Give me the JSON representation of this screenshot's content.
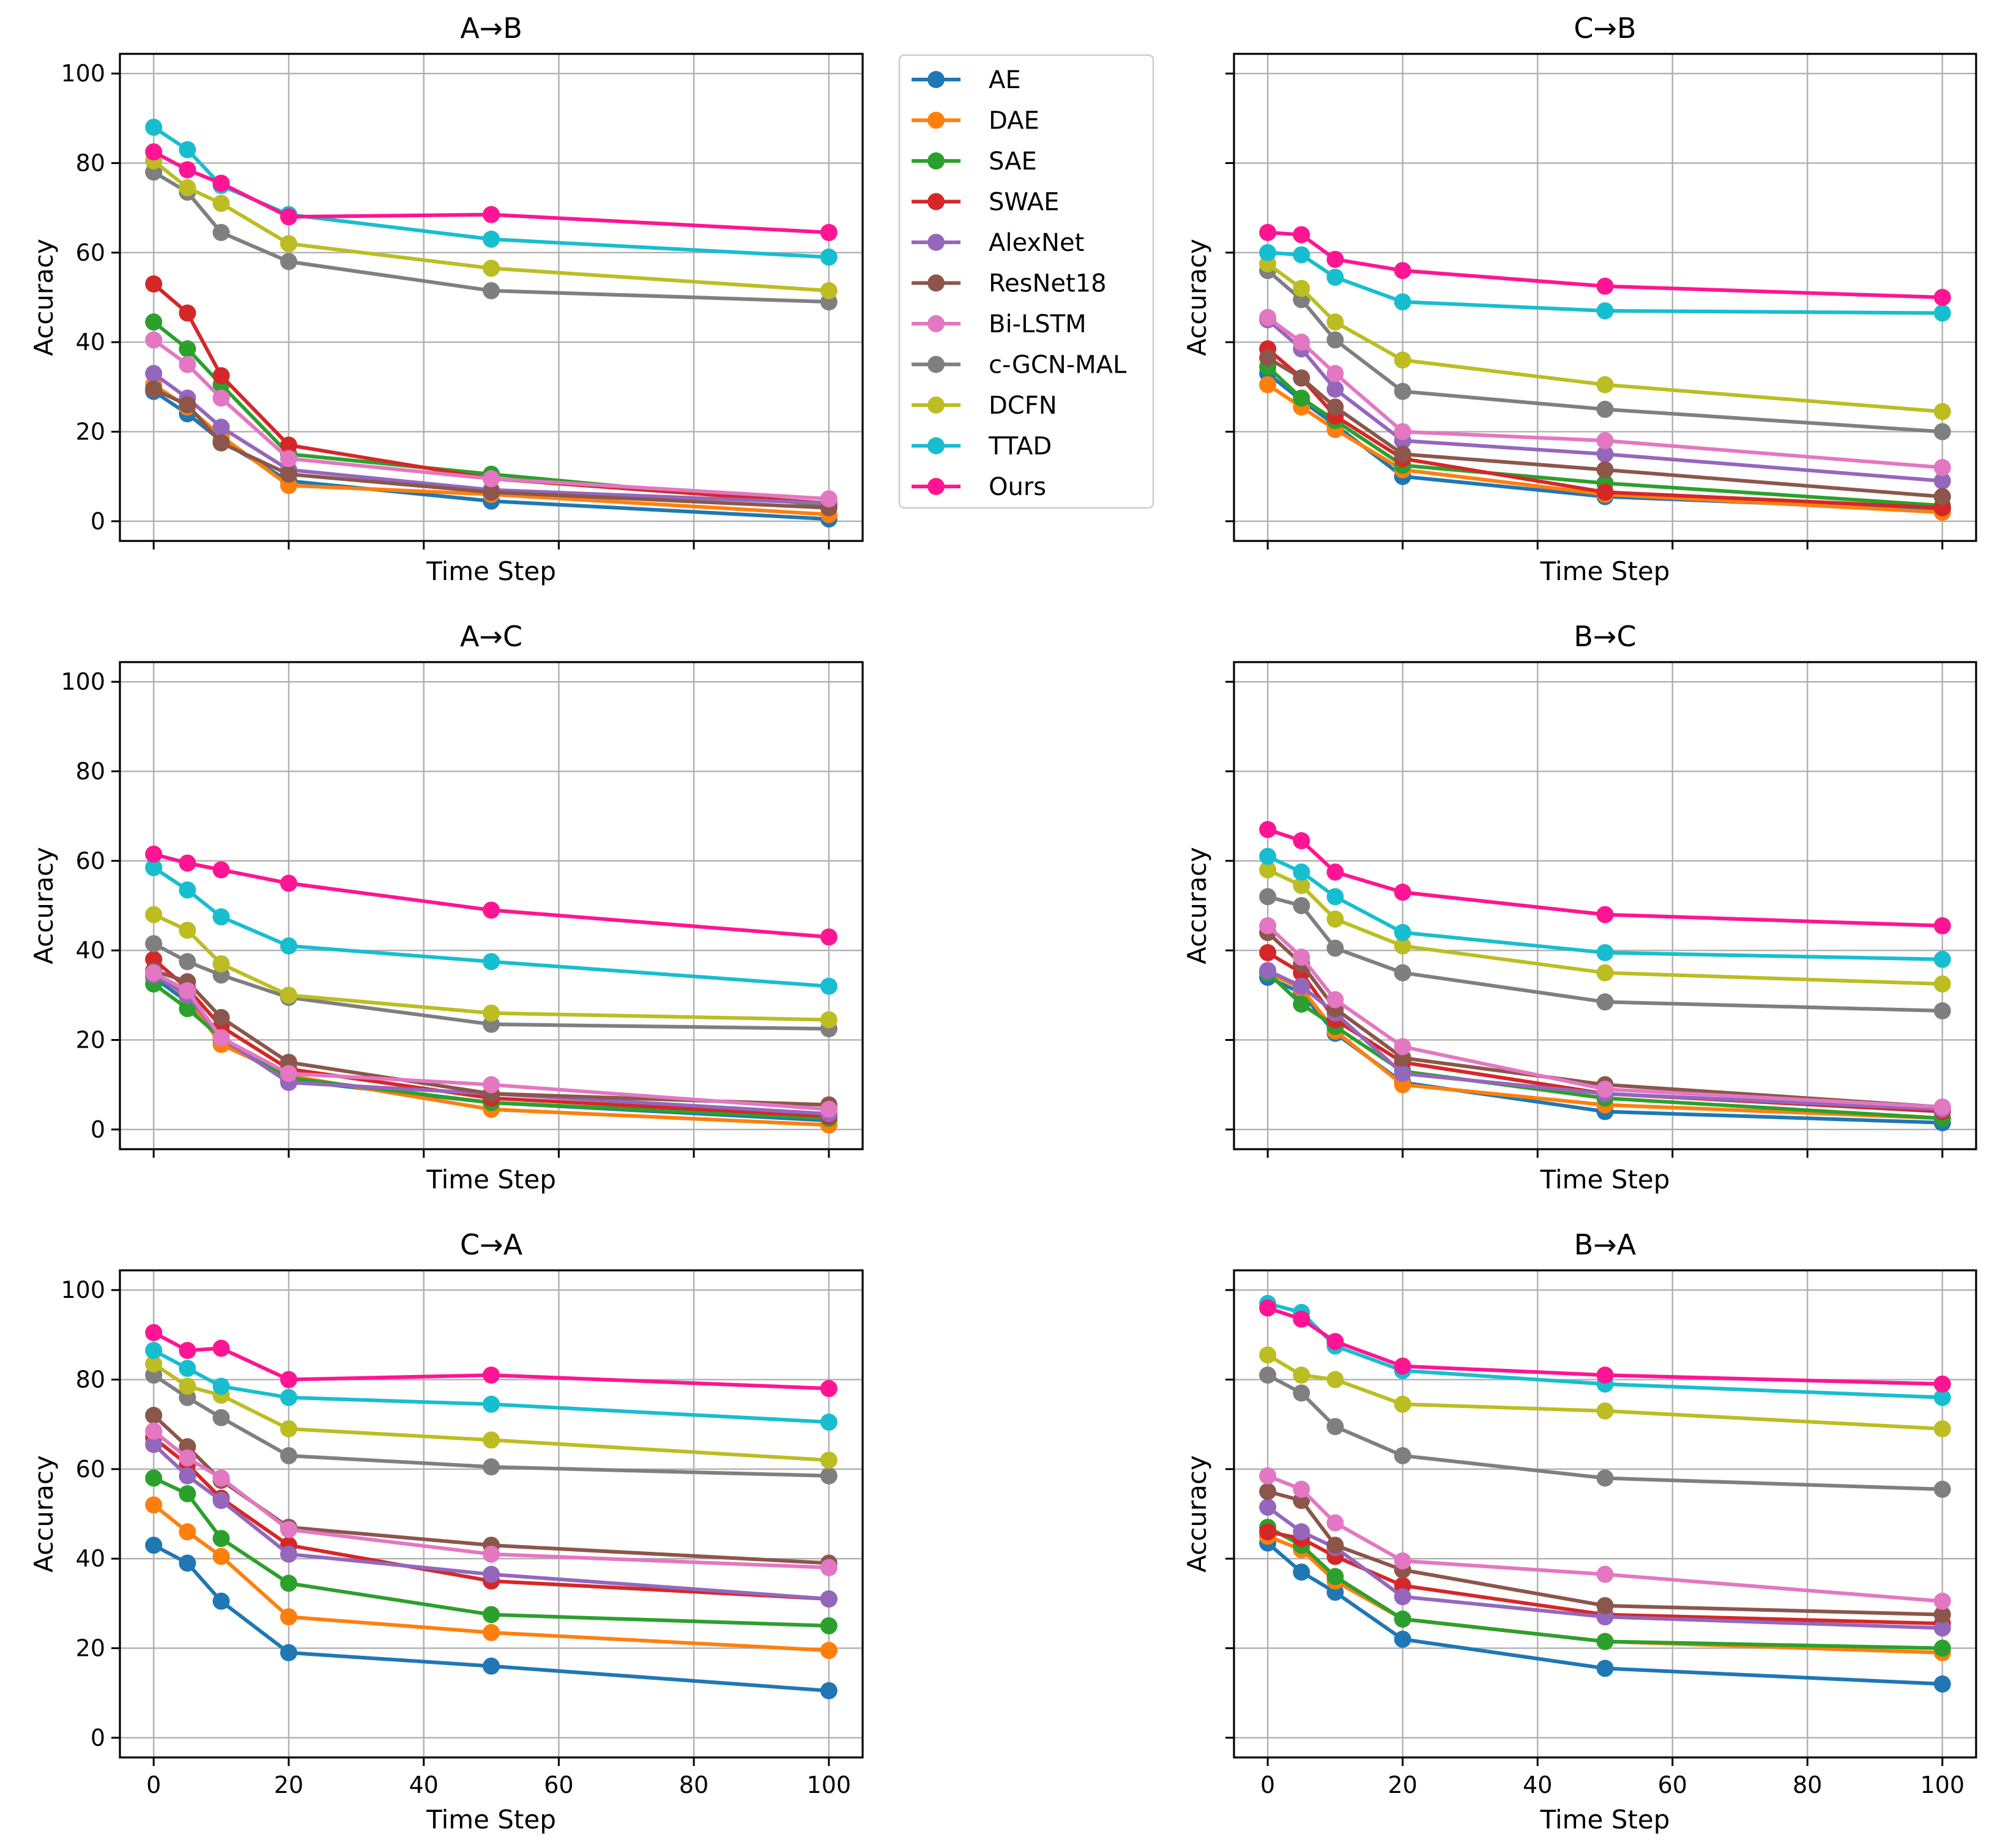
{
  "figure": {
    "x_ticks": [
      0,
      20,
      40,
      60,
      80,
      100
    ],
    "y_ticks": [
      0,
      20,
      40,
      60,
      80,
      100
    ]
  },
  "series_colors": {
    "AE": "#1f77b4",
    "DAE": "#ff7f0e",
    "SAE": "#2ca02c",
    "SWAE": "#d62728",
    "AlexNet": "#9467bd",
    "ResNet18": "#8c564b",
    "Bi-LSTM": "#e377c2",
    "c-GCN-MAL": "#7f7f7f",
    "DCFN": "#bcbd22",
    "TTAD": "#17becf",
    "Ours": "#ff1493"
  },
  "chart_data": [
    {
      "type": "line",
      "title": "A→B",
      "xlabel": "Time Step",
      "ylabel": "Accuracy",
      "x": [
        0,
        5,
        10,
        20,
        50,
        100
      ],
      "xlim": [
        -5,
        105
      ],
      "ylim": [
        -4.4,
        104.4
      ],
      "grid": true,
      "show_x_tick_labels": false,
      "show_y_tick_labels": true,
      "legend": "right-outside",
      "series": [
        {
          "name": "AE",
          "values": [
            29.0,
            24.0,
            18.0,
            9.0,
            4.5,
            0.5
          ]
        },
        {
          "name": "DAE",
          "values": [
            30.5,
            25.5,
            19.0,
            8.0,
            6.0,
            1.5
          ]
        },
        {
          "name": "SAE",
          "values": [
            44.5,
            38.5,
            30.5,
            15.0,
            10.5,
            3.5
          ]
        },
        {
          "name": "SWAE",
          "values": [
            53.0,
            46.5,
            32.5,
            17.0,
            9.5,
            4.0
          ]
        },
        {
          "name": "AlexNet",
          "values": [
            33.0,
            27.5,
            21.0,
            11.5,
            7.0,
            4.0
          ]
        },
        {
          "name": "ResNet18",
          "values": [
            29.5,
            26.0,
            17.5,
            10.5,
            6.5,
            3.0
          ]
        },
        {
          "name": "Bi-LSTM",
          "values": [
            40.5,
            35.0,
            27.5,
            14.0,
            9.5,
            5.0
          ]
        },
        {
          "name": "c-GCN-MAL",
          "values": [
            78.0,
            73.5,
            64.5,
            58.0,
            51.5,
            49.0
          ]
        },
        {
          "name": "DCFN",
          "values": [
            80.5,
            74.5,
            71.0,
            62.0,
            56.5,
            51.5
          ]
        },
        {
          "name": "TTAD",
          "values": [
            88.0,
            83.0,
            75.0,
            68.5,
            63.0,
            59.0
          ]
        },
        {
          "name": "Ours",
          "values": [
            82.5,
            78.5,
            75.5,
            68.0,
            68.5,
            64.5
          ]
        }
      ]
    },
    {
      "type": "line",
      "title": "C→B",
      "xlabel": "Time Step",
      "ylabel": "Accuracy",
      "x": [
        0,
        5,
        10,
        20,
        50,
        100
      ],
      "xlim": [
        -5,
        105
      ],
      "ylim": [
        -4.4,
        104.4
      ],
      "grid": true,
      "show_x_tick_labels": false,
      "show_y_tick_labels": false,
      "series": [
        {
          "name": "AE",
          "values": [
            33.0,
            27.0,
            21.5,
            10.0,
            5.5,
            2.5
          ]
        },
        {
          "name": "DAE",
          "values": [
            30.5,
            25.5,
            20.5,
            11.5,
            6.0,
            2.0
          ]
        },
        {
          "name": "SAE",
          "values": [
            34.5,
            27.5,
            22.5,
            12.5,
            8.5,
            3.5
          ]
        },
        {
          "name": "SWAE",
          "values": [
            38.5,
            32.0,
            23.5,
            14.0,
            6.5,
            3.0
          ]
        },
        {
          "name": "AlexNet",
          "values": [
            45.0,
            38.5,
            29.5,
            18.0,
            15.0,
            9.0
          ]
        },
        {
          "name": "ResNet18",
          "values": [
            36.5,
            32.0,
            25.5,
            15.0,
            11.5,
            5.5
          ]
        },
        {
          "name": "Bi-LSTM",
          "values": [
            45.5,
            40.0,
            33.0,
            20.0,
            18.0,
            12.0
          ]
        },
        {
          "name": "c-GCN-MAL",
          "values": [
            56.0,
            49.5,
            40.5,
            29.0,
            25.0,
            20.0
          ]
        },
        {
          "name": "DCFN",
          "values": [
            57.5,
            52.0,
            44.5,
            36.0,
            30.5,
            24.5
          ]
        },
        {
          "name": "TTAD",
          "values": [
            60.0,
            59.5,
            54.5,
            49.0,
            47.0,
            46.5
          ]
        },
        {
          "name": "Ours",
          "values": [
            64.5,
            64.0,
            58.5,
            56.0,
            52.5,
            50.0
          ]
        }
      ]
    },
    {
      "type": "line",
      "title": "A→C",
      "xlabel": "Time Step",
      "ylabel": "Accuracy",
      "x": [
        0,
        5,
        10,
        20,
        50,
        100
      ],
      "xlim": [
        -5,
        105
      ],
      "ylim": [
        -4.4,
        104.4
      ],
      "grid": true,
      "show_x_tick_labels": false,
      "show_y_tick_labels": true,
      "series": [
        {
          "name": "AE",
          "values": [
            34.0,
            28.5,
            20.0,
            11.0,
            6.0,
            2.0
          ]
        },
        {
          "name": "DAE",
          "values": [
            35.0,
            29.5,
            19.0,
            12.0,
            4.5,
            1.0
          ]
        },
        {
          "name": "SAE",
          "values": [
            32.5,
            27.0,
            20.5,
            11.5,
            6.0,
            2.5
          ]
        },
        {
          "name": "SWAE",
          "values": [
            38.0,
            31.5,
            23.0,
            13.5,
            7.0,
            3.0
          ]
        },
        {
          "name": "AlexNet",
          "values": [
            34.5,
            30.0,
            20.5,
            10.5,
            8.0,
            3.5
          ]
        },
        {
          "name": "ResNet18",
          "values": [
            35.5,
            33.0,
            25.0,
            15.0,
            8.0,
            5.5
          ]
        },
        {
          "name": "Bi-LSTM",
          "values": [
            35.0,
            31.0,
            20.5,
            12.5,
            10.0,
            4.5
          ]
        },
        {
          "name": "c-GCN-MAL",
          "values": [
            41.5,
            37.5,
            34.5,
            29.5,
            23.5,
            22.5
          ]
        },
        {
          "name": "DCFN",
          "values": [
            48.0,
            44.5,
            37.0,
            30.0,
            26.0,
            24.5
          ]
        },
        {
          "name": "TTAD",
          "values": [
            58.5,
            53.5,
            47.5,
            41.0,
            37.5,
            32.0
          ]
        },
        {
          "name": "Ours",
          "values": [
            61.5,
            59.5,
            58.0,
            55.0,
            49.0,
            43.0
          ]
        }
      ]
    },
    {
      "type": "line",
      "title": "B→C",
      "xlabel": "Time Step",
      "ylabel": "Accuracy",
      "x": [
        0,
        5,
        10,
        20,
        50,
        100
      ],
      "xlim": [
        -5,
        105
      ],
      "ylim": [
        -4.4,
        104.4
      ],
      "grid": true,
      "show_x_tick_labels": false,
      "show_y_tick_labels": false,
      "series": [
        {
          "name": "AE",
          "values": [
            34.0,
            30.5,
            21.5,
            10.5,
            4.0,
            1.5
          ]
        },
        {
          "name": "DAE",
          "values": [
            35.0,
            31.5,
            22.0,
            10.0,
            5.5,
            2.5
          ]
        },
        {
          "name": "SAE",
          "values": [
            35.0,
            28.0,
            23.0,
            13.0,
            7.0,
            2.5
          ]
        },
        {
          "name": "SWAE",
          "values": [
            39.5,
            35.0,
            24.5,
            15.0,
            8.0,
            4.0
          ]
        },
        {
          "name": "AlexNet",
          "values": [
            35.5,
            32.0,
            26.0,
            12.5,
            8.0,
            4.5
          ]
        },
        {
          "name": "ResNet18",
          "values": [
            44.0,
            37.0,
            27.0,
            16.0,
            10.0,
            5.0
          ]
        },
        {
          "name": "Bi-LSTM",
          "values": [
            45.5,
            38.5,
            29.0,
            18.5,
            9.0,
            5.0
          ]
        },
        {
          "name": "c-GCN-MAL",
          "values": [
            52.0,
            50.0,
            40.5,
            35.0,
            28.5,
            26.5
          ]
        },
        {
          "name": "DCFN",
          "values": [
            58.0,
            54.5,
            47.0,
            41.0,
            35.0,
            32.5
          ]
        },
        {
          "name": "TTAD",
          "values": [
            61.0,
            57.5,
            52.0,
            44.0,
            39.5,
            38.0
          ]
        },
        {
          "name": "Ours",
          "values": [
            67.0,
            64.5,
            57.5,
            53.0,
            48.0,
            45.5
          ]
        }
      ]
    },
    {
      "type": "line",
      "title": "C→A",
      "xlabel": "Time Step",
      "ylabel": "Accuracy",
      "x": [
        0,
        5,
        10,
        20,
        50,
        100
      ],
      "xlim": [
        -5,
        105
      ],
      "ylim": [
        -4.4,
        104.4
      ],
      "grid": true,
      "show_x_tick_labels": true,
      "show_y_tick_labels": true,
      "series": [
        {
          "name": "AE",
          "values": [
            43.0,
            39.0,
            30.5,
            19.0,
            16.0,
            10.5
          ]
        },
        {
          "name": "DAE",
          "values": [
            52.0,
            46.0,
            40.5,
            27.0,
            23.5,
            19.5
          ]
        },
        {
          "name": "SAE",
          "values": [
            58.0,
            54.5,
            44.5,
            34.5,
            27.5,
            25.0
          ]
        },
        {
          "name": "SWAE",
          "values": [
            67.0,
            61.0,
            53.5,
            43.0,
            35.0,
            31.0
          ]
        },
        {
          "name": "AlexNet",
          "values": [
            65.5,
            58.5,
            53.0,
            41.0,
            36.5,
            31.0
          ]
        },
        {
          "name": "ResNet18",
          "values": [
            72.0,
            65.0,
            57.5,
            47.0,
            43.0,
            39.0
          ]
        },
        {
          "name": "Bi-LSTM",
          "values": [
            68.5,
            62.5,
            58.0,
            46.5,
            41.0,
            38.0
          ]
        },
        {
          "name": "c-GCN-MAL",
          "values": [
            81.0,
            76.0,
            71.5,
            63.0,
            60.5,
            58.5
          ]
        },
        {
          "name": "DCFN",
          "values": [
            83.5,
            78.5,
            76.5,
            69.0,
            66.5,
            62.0
          ]
        },
        {
          "name": "TTAD",
          "values": [
            86.5,
            82.5,
            78.5,
            76.0,
            74.5,
            70.5
          ]
        },
        {
          "name": "Ours",
          "values": [
            90.5,
            86.5,
            87.0,
            80.0,
            81.0,
            78.0
          ]
        }
      ]
    },
    {
      "type": "line",
      "title": "B→A",
      "xlabel": "Time Step",
      "ylabel": "Accuracy",
      "x": [
        0,
        5,
        10,
        20,
        50,
        100
      ],
      "xlim": [
        -5,
        105
      ],
      "ylim": [
        -4.4,
        104.4
      ],
      "grid": true,
      "show_x_tick_labels": true,
      "show_y_tick_labels": false,
      "series": [
        {
          "name": "AE",
          "values": [
            43.5,
            37.0,
            32.5,
            22.0,
            15.5,
            12.0
          ]
        },
        {
          "name": "DAE",
          "values": [
            45.0,
            42.0,
            35.0,
            26.5,
            21.5,
            19.0
          ]
        },
        {
          "name": "SAE",
          "values": [
            47.0,
            43.0,
            36.0,
            26.5,
            21.5,
            20.0
          ]
        },
        {
          "name": "SWAE",
          "values": [
            46.0,
            44.5,
            40.5,
            34.0,
            27.5,
            25.5
          ]
        },
        {
          "name": "AlexNet",
          "values": [
            51.5,
            46.0,
            42.5,
            31.5,
            27.0,
            24.5
          ]
        },
        {
          "name": "ResNet18",
          "values": [
            55.0,
            53.0,
            43.0,
            37.5,
            29.5,
            27.5
          ]
        },
        {
          "name": "Bi-LSTM",
          "values": [
            58.5,
            55.5,
            48.0,
            39.5,
            36.5,
            30.5
          ]
        },
        {
          "name": "c-GCN-MAL",
          "values": [
            81.0,
            77.0,
            69.5,
            63.0,
            58.0,
            55.5
          ]
        },
        {
          "name": "DCFN",
          "values": [
            85.5,
            81.0,
            80.0,
            74.5,
            73.0,
            69.0
          ]
        },
        {
          "name": "TTAD",
          "values": [
            97.0,
            95.0,
            87.5,
            82.0,
            79.0,
            76.0
          ]
        },
        {
          "name": "Ours",
          "values": [
            96.0,
            93.5,
            88.5,
            83.0,
            81.0,
            79.0
          ]
        }
      ]
    }
  ]
}
